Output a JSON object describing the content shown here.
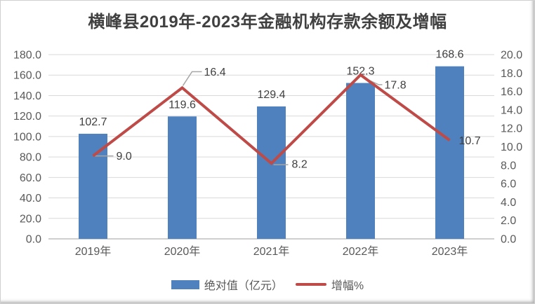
{
  "title": "横峰县2019年-2023年金融机构存款余额及增幅",
  "colors": {
    "bar": "#4E81BD",
    "line": "#BE4B48",
    "grid": "#D9D9D9",
    "axis_line": "#BFBFBF",
    "tick_text": "#595959",
    "data_label": "#404040",
    "leader": "#A6A6A6",
    "title_text": "#404040"
  },
  "legend": [
    {
      "label": "绝对值（亿元）",
      "type": "bar",
      "color": "#4E81BD"
    },
    {
      "label": "增幅%",
      "type": "line",
      "color": "#BE4B48"
    }
  ],
  "chart_data": {
    "type": "bar",
    "subtype": "combo-bar-line-dual-axis",
    "title": "横峰县2019年-2023年金融机构存款余额及增幅",
    "categories": [
      "2019年",
      "2020年",
      "2021年",
      "2022年",
      "2023年"
    ],
    "series": [
      {
        "name": "绝对值（亿元）",
        "type": "bar",
        "axis": "left",
        "color": "#4E81BD",
        "values": [
          102.7,
          119.6,
          129.4,
          152.3,
          168.6
        ],
        "labels": [
          "102.7",
          "119.6",
          "129.4",
          "152.3",
          "168.6"
        ]
      },
      {
        "name": "增幅%",
        "type": "line",
        "axis": "right",
        "color": "#BE4B48",
        "values": [
          9.0,
          16.4,
          8.2,
          17.8,
          10.7
        ],
        "labels": [
          "9.0",
          "16.4",
          "8.2",
          "17.8",
          "10.7"
        ]
      }
    ],
    "left_axis": {
      "min": 0,
      "max": 180,
      "step": 20,
      "ticks": [
        "0.0",
        "20.0",
        "40.0",
        "60.0",
        "80.0",
        "100.0",
        "120.0",
        "140.0",
        "160.0",
        "180.0"
      ]
    },
    "right_axis": {
      "min": 0,
      "max": 20,
      "step": 2,
      "ticks": [
        "0.0",
        "2.0",
        "4.0",
        "6.0",
        "8.0",
        "10.0",
        "12.0",
        "14.0",
        "16.0",
        "18.0",
        "20.0"
      ]
    },
    "grid": true,
    "legend_position": "bottom",
    "xlabel": "",
    "ylabel": ""
  }
}
